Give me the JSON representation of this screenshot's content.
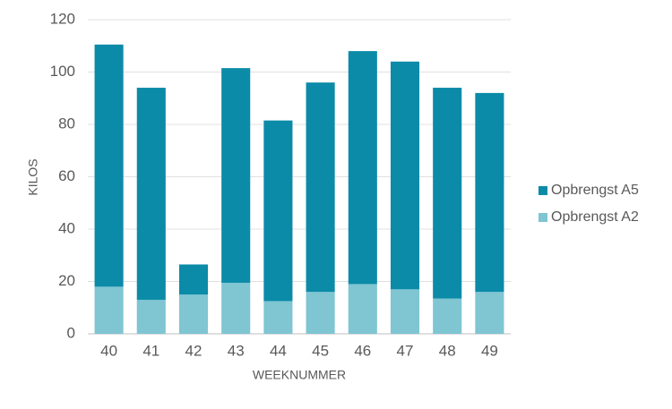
{
  "chart_data": {
    "type": "stacked-bar",
    "x_label": "WEEKNUMMER",
    "y_label": "KILOS",
    "categories": [
      "40",
      "41",
      "42",
      "43",
      "44",
      "45",
      "46",
      "47",
      "48",
      "49"
    ],
    "series": [
      {
        "name": "Opbrengst A2",
        "color": "#7fc5d2",
        "values": [
          18,
          13,
          15,
          19.5,
          12.5,
          16,
          19,
          17,
          13.5,
          16
        ]
      },
      {
        "name": "Opbrengst A5",
        "color": "#0b8ba8",
        "values": [
          92.5,
          81,
          11.5,
          82,
          69,
          80,
          89,
          87,
          80.5,
          76
        ]
      }
    ],
    "ylim": [
      0,
      120
    ],
    "yticks": [
      0,
      20,
      40,
      60,
      80,
      100,
      120
    ],
    "grid": true,
    "legend": "right"
  }
}
